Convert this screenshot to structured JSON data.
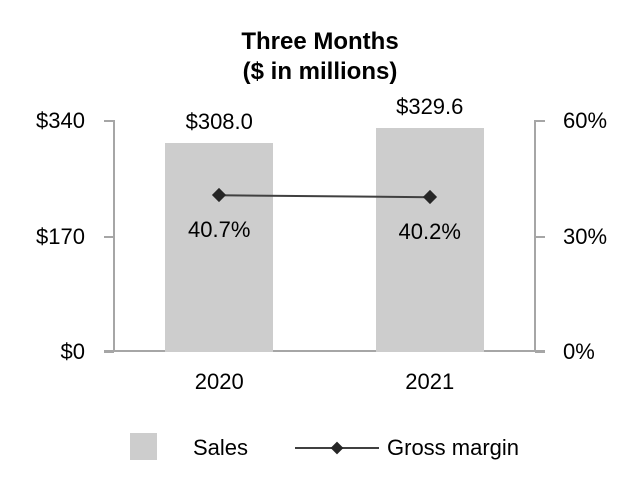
{
  "chart_data": {
    "type": "bar",
    "title": "Three Months",
    "subtitle": "($ in millions)",
    "categories": [
      "2020",
      "2021"
    ],
    "series": [
      {
        "name": "Sales",
        "type": "bar",
        "axis": "left",
        "values": [
          308.0,
          329.6
        ],
        "labels": [
          "$308.0",
          "$329.6"
        ],
        "color": "#cdcdcd"
      },
      {
        "name": "Gross margin",
        "type": "line",
        "axis": "right",
        "values": [
          40.7,
          40.2
        ],
        "labels": [
          "40.7%",
          "40.2%"
        ],
        "color": "#404040",
        "marker": "diamond",
        "marker_color": "#262626"
      }
    ],
    "left_axis": {
      "min": 0,
      "max": 340,
      "ticks": [
        {
          "value": 340,
          "label": "$340"
        },
        {
          "value": 170,
          "label": "$170"
        },
        {
          "value": 0,
          "label": "$0"
        }
      ]
    },
    "right_axis": {
      "min": 0,
      "max": 60,
      "ticks": [
        {
          "value": 60,
          "label": "60%"
        },
        {
          "value": 30,
          "label": "30%"
        },
        {
          "value": 0,
          "label": "0%"
        }
      ]
    },
    "legend": [
      {
        "label": "Sales",
        "swatch": "bar"
      },
      {
        "label": "Gross margin",
        "swatch": "line-diamond"
      }
    ],
    "legend_position": "bottom",
    "grid": false,
    "colors": {
      "bar_fill": "#cdcdcd",
      "axis_line": "#a6a6a6",
      "line_series": "#404040",
      "marker": "#262626",
      "text": "#000000"
    }
  }
}
